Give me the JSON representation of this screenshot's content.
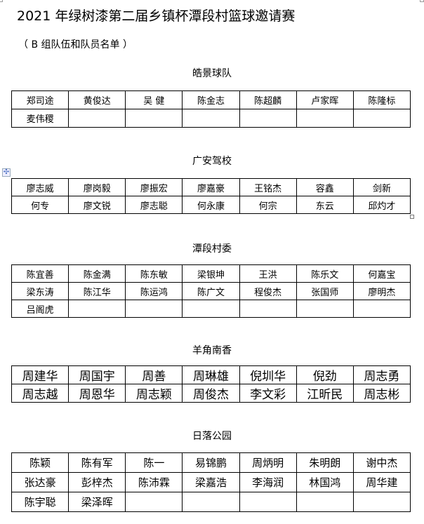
{
  "document": {
    "title": "2021 年绿树漆第二届乡镇杯潭段村篮球邀请赛",
    "subtitle": "（ B 组队伍和队员名单 ）"
  },
  "teams": [
    {
      "name": "皓景球队",
      "players": [
        "郑司途",
        "黄俊达",
        "吴 健",
        "陈金志",
        "陈超麟",
        "卢家晖",
        "陈隆标",
        "麦伟稷"
      ]
    },
    {
      "name": "广安驾校",
      "players": [
        "廖志威",
        "廖岗毅",
        "廖振宏",
        "廖嘉豪",
        "王铭杰",
        "容鑫",
        "剑新",
        "何专",
        "廖文锐",
        "廖志聪",
        "何永康",
        "何宗",
        "东云",
        "邱灼才"
      ]
    },
    {
      "name": "潭段村委",
      "players": [
        "陈宜善",
        "陈金满",
        "陈东敏",
        "梁银坤",
        "王洪",
        "陈乐文",
        "何嘉宝",
        "梁东涛",
        "陈江华",
        "陈运鸿",
        "陈广文",
        "程俊杰",
        "张国师",
        "廖明杰",
        "吕阁虎"
      ]
    },
    {
      "name": "羊角南香",
      "players": [
        "周建华",
        "周国宇",
        "周善",
        "周琳雄",
        "倪圳华",
        "倪劲",
        "周志勇",
        "周志越",
        "周恩华",
        "周志颖",
        "周俊杰",
        "李文彩",
        "江昕民",
        "周志彬"
      ]
    },
    {
      "name": "日落公园",
      "players": [
        "陈颖",
        "陈有军",
        "陈一",
        "易锦鹏",
        "周炳明",
        "朱明朗",
        "谢中杰",
        "张达豪",
        "彭梓杰",
        "陈沛霖",
        "梁嘉浩",
        "李海润",
        "林国鸿",
        "周华建",
        "陈宇聪",
        "梁泽晖"
      ]
    }
  ]
}
